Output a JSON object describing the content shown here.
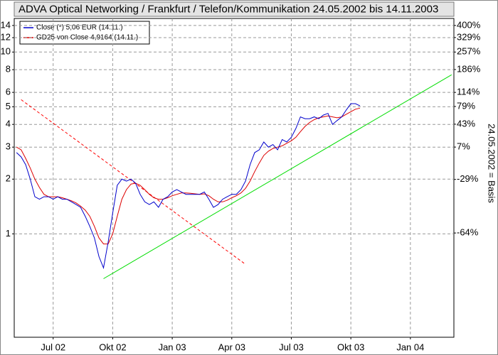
{
  "chart_data": {
    "type": "line",
    "title": "ADVA Optical Networking / Frankfurt / Telefon/Kommunikation 24.05.2002 bis 14.11.2003",
    "y2_axis_label": "24.05.2002 = Basis",
    "log_scale": true,
    "grid": true,
    "legend": "upper left",
    "categories": [
      null,
      null,
      null,
      null,
      null,
      null,
      null,
      null,
      "Jul 02",
      null,
      null,
      null,
      null,
      null,
      null,
      null,
      null,
      null,
      null,
      null,
      null,
      "Okt 02",
      null,
      null,
      null,
      null,
      null,
      null,
      null,
      null,
      null,
      null,
      null,
      null,
      "Jan 03",
      null,
      null,
      null,
      null,
      null,
      null,
      null,
      null,
      null,
      null,
      null,
      null,
      "Apr 03",
      null,
      null,
      null,
      null,
      null,
      null,
      null,
      null,
      null,
      null,
      null,
      null,
      "Jul 03",
      null,
      null,
      null,
      null,
      null,
      null,
      null,
      null,
      null,
      null,
      null,
      null,
      "Okt 03",
      null,
      null,
      null,
      null,
      null,
      null,
      null,
      null,
      null,
      null,
      null,
      null,
      "Jan 04",
      null,
      null,
      null,
      null,
      null,
      null,
      null,
      null,
      null
    ],
    "series": [
      {
        "name": "Close (*) 5,06 EUR (14.11.)",
        "color": "#0000cc",
        "values": [
          2.8,
          2.65,
          2.4,
          2.0,
          1.6,
          1.55,
          1.6,
          1.6,
          1.55,
          1.6,
          1.55,
          1.55,
          1.5,
          1.45,
          1.4,
          1.25,
          1.1,
          0.95,
          0.75,
          0.65,
          0.9,
          1.3,
          1.85,
          2.0,
          1.95,
          2.0,
          1.9,
          1.65,
          1.5,
          1.45,
          1.5,
          1.4,
          1.55,
          1.6,
          1.7,
          1.75,
          1.7,
          1.65,
          1.65,
          1.65,
          1.65,
          1.7,
          1.55,
          1.4,
          1.45,
          1.55,
          1.6,
          1.65,
          1.65,
          1.75,
          1.95,
          2.4,
          2.8,
          2.9,
          3.2,
          3.0,
          3.1,
          2.9,
          3.3,
          3.2,
          3.4,
          3.8,
          4.4,
          4.3,
          4.3,
          4.4,
          4.3,
          4.5,
          4.6,
          4.0,
          4.2,
          4.4,
          4.8,
          5.2,
          5.2,
          5.06,
          null,
          null,
          null,
          null,
          null,
          null,
          null,
          null,
          null,
          null,
          null,
          null,
          null,
          null,
          null,
          null,
          null,
          null,
          null,
          null
        ]
      },
      {
        "name": "GD25 von Close 4,9164 (14.11.)",
        "color": "#dd0000",
        "values": [
          3.0,
          2.9,
          2.6,
          2.3,
          2.0,
          1.8,
          1.65,
          1.6,
          1.6,
          1.6,
          1.58,
          1.55,
          1.52,
          1.48,
          1.42,
          1.35,
          1.25,
          1.1,
          0.95,
          0.88,
          0.88,
          1.0,
          1.25,
          1.55,
          1.75,
          1.88,
          1.9,
          1.85,
          1.75,
          1.65,
          1.58,
          1.55,
          1.55,
          1.58,
          1.62,
          1.65,
          1.68,
          1.68,
          1.67,
          1.66,
          1.65,
          1.66,
          1.62,
          1.55,
          1.5,
          1.5,
          1.53,
          1.58,
          1.62,
          1.68,
          1.78,
          1.95,
          2.2,
          2.45,
          2.7,
          2.85,
          2.95,
          3.0,
          3.05,
          3.15,
          3.25,
          3.4,
          3.65,
          3.9,
          4.1,
          4.25,
          4.35,
          4.4,
          4.45,
          4.4,
          4.35,
          4.4,
          4.55,
          4.7,
          4.85,
          4.9164,
          null,
          null,
          null,
          null,
          null,
          null,
          null,
          null,
          null,
          null,
          null,
          null,
          null,
          null,
          null,
          null,
          null,
          null,
          null,
          null
        ]
      }
    ],
    "trend_lines": [
      {
        "color": "#00dd00",
        "dashed": false,
        "x": [
          19,
          95
        ],
        "values": [
          0.567,
          7.5
        ]
      },
      {
        "color": "#ff0000",
        "dashed": true,
        "x": [
          1,
          50
        ],
        "values": [
          5.47,
          0.68
        ]
      }
    ],
    "ylim": [
      0.27,
      15.3
    ],
    "yticks": [
      1,
      2,
      3,
      4,
      5,
      6,
      8,
      10,
      12,
      14
    ],
    "y2lim": [
      -90.4,
      446.4
    ],
    "y2ticks": [
      {
        "value": -64,
        "label": "-64%"
      },
      {
        "value": -29,
        "label": "-29%"
      },
      {
        "value": 7,
        "label": "7%"
      },
      {
        "value": 43,
        "label": "43%"
      },
      {
        "value": 79,
        "label": "79%"
      },
      {
        "value": 114,
        "label": "114%"
      },
      {
        "value": 186,
        "label": "186%"
      },
      {
        "value": 257,
        "label": "257%"
      },
      {
        "value": 329,
        "label": "329%"
      },
      {
        "value": 400,
        "label": "400%"
      }
    ]
  }
}
